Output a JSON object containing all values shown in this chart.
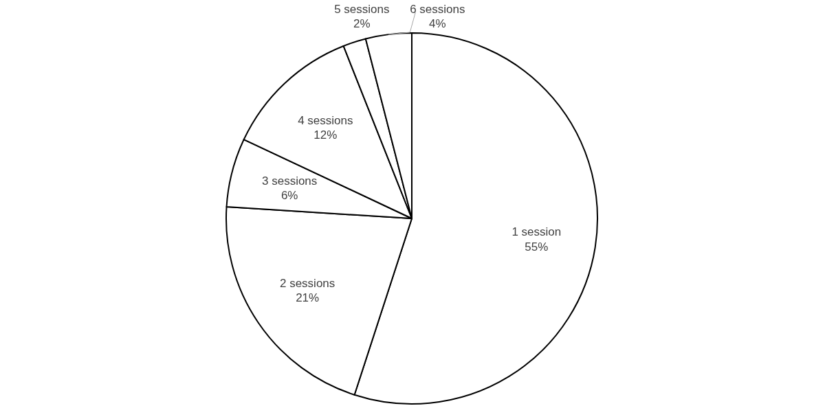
{
  "chart_data": {
    "type": "pie",
    "categories": [
      "1 session",
      "2 sessions",
      "3 sessions",
      "4 sessions",
      "5 sessions",
      "6 sessions"
    ],
    "values": [
      55,
      21,
      6,
      12,
      2,
      4
    ],
    "colors": [
      "#ffffff",
      "#ffffff",
      "#ffffff",
      "#ffffff",
      "#ffffff",
      "#ffffff"
    ],
    "value_labels": [
      "55%",
      "21%",
      "6%",
      "12%",
      "2%",
      "4%"
    ]
  }
}
